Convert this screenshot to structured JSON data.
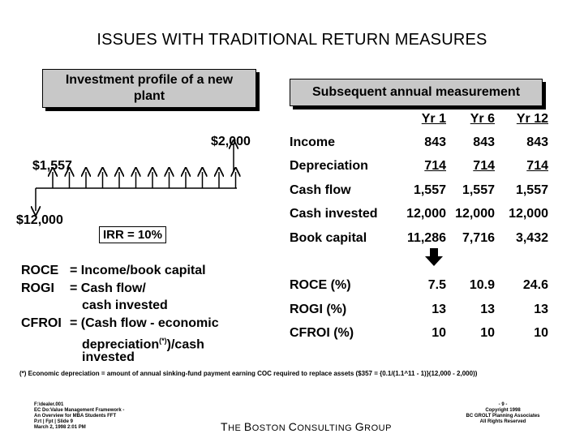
{
  "title": "ISSUES WITH TRADITIONAL RETURN MEASURES",
  "left_box": "Investment profile of a new plant",
  "right_box": "Subsequent annual measurement",
  "cashflow": {
    "terminal": "$2,000",
    "annual": "$1,557",
    "initial": "$12,000",
    "irr": "IRR = 10%"
  },
  "definitions": {
    "roce_label": "ROCE",
    "roce_def": "= Income/book capital",
    "rogi_label": "ROGI",
    "rogi_def_1": "= Cash flow/",
    "rogi_def_2": "cash invested",
    "cfroi_label": "CFROI",
    "cfroi_def_1": "= (Cash flow - economic",
    "cfroi_def_2": "depreciation",
    "cfroi_sup": "(*)",
    "cfroi_def_2b": ")/cash",
    "cfroi_def_3": "invested"
  },
  "table": {
    "headers": [
      "Yr 1",
      "Yr 6",
      "Yr 12"
    ],
    "rows": [
      {
        "label": "Income",
        "values": [
          "843",
          "843",
          "843"
        ],
        "underline": false
      },
      {
        "label": "Depreciation",
        "values": [
          "714",
          "714",
          "714"
        ],
        "underline": true
      },
      {
        "label": "Cash flow",
        "values": [
          "1,557",
          "1,557",
          "1,557"
        ],
        "underline": false
      },
      {
        "label": "Cash invested",
        "values": [
          "12,000",
          "12,000",
          "12,000"
        ],
        "underline": false
      },
      {
        "label": "Book capital",
        "values": [
          "11,286",
          "7,716",
          "3,432"
        ],
        "underline": false
      }
    ],
    "ratios": [
      {
        "label": "ROCE (%)",
        "values": [
          "7.5",
          "10.9",
          "24.6"
        ]
      },
      {
        "label": "ROGI (%)",
        "values": [
          "13",
          "13",
          "13"
        ]
      },
      {
        "label": "CFROI (%)",
        "values": [
          "10",
          "10",
          "10"
        ]
      }
    ]
  },
  "footnote": "(*) Economic depreciation = amount of annual sinking-fund payment earning COC required to replace assets ($357 = {0.1/(1.1^11 - 1)}(12,000 - 2,000))",
  "footer_left": [
    "F:\\dealer.001",
    "EC Do:Value Management Framework -",
    "An Overview for MBA Students FFT",
    "P.rt | Fpt | Slide 9",
    "March 2, 1998 2:01 PM"
  ],
  "footer_center": {
    "t": "T",
    "he": "HE ",
    "b": "B",
    "oston": "OSTON ",
    "c": "C",
    "onsulting": "ONSULTING ",
    "g": "G",
    "roup": "ROUP"
  },
  "footer_right": [
    "- 9 -",
    "Copyright 1998",
    "BC GROLT Planning Associates",
    "All Rights Reserved"
  ]
}
